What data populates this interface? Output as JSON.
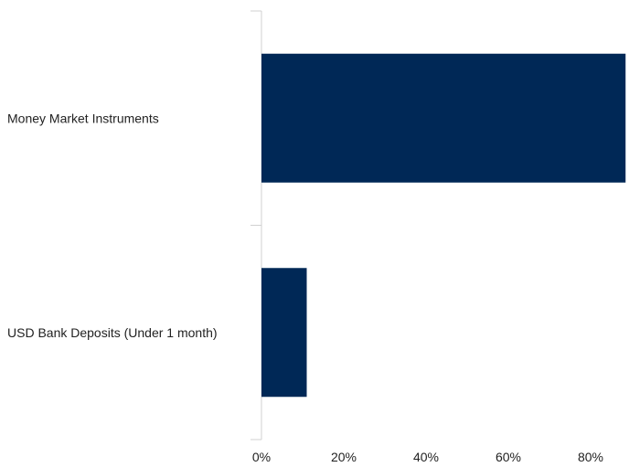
{
  "chart_data": {
    "type": "bar",
    "orientation": "horizontal",
    "categories": [
      "Money Market Instruments",
      "USD Bank Deposits (Under 1 month)"
    ],
    "values": [
      88.5,
      11.0
    ],
    "unit": "%",
    "xlim": [
      0,
      95
    ],
    "x_ticks": [
      0,
      20,
      40,
      60,
      80
    ],
    "x_tick_labels": [
      "0%",
      "20%",
      "40%",
      "60%",
      "80%"
    ],
    "title": "",
    "xlabel": "",
    "ylabel": "",
    "grid": false,
    "legend": "none",
    "bar_color": "#002856",
    "axis_color": "#d0d0d0"
  }
}
